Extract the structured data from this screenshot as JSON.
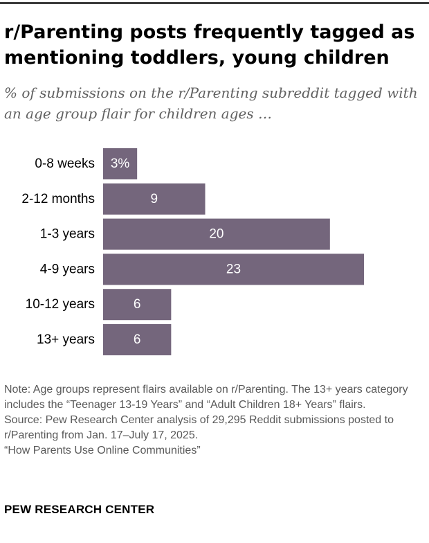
{
  "title": "r/Parenting posts frequently tagged as mentioning toddlers, young children",
  "subtitle": "% of submissions on the r/Parenting subreddit tagged with an age group flair for children ages …",
  "chart_data": {
    "type": "bar",
    "orientation": "horizontal",
    "categories": [
      "0-8 weeks",
      "2-12 months",
      "1-3 years",
      "4-9 years",
      "10-12 years",
      "13+ years"
    ],
    "values": [
      3,
      9,
      20,
      23,
      6,
      6
    ],
    "value_labels": [
      "3%",
      "9",
      "20",
      "23",
      "6",
      "6"
    ],
    "bar_color": "#74667c",
    "label_color": "#ffffff",
    "xlim": [
      0,
      23
    ]
  },
  "note": "Note: Age groups represent flairs available on r/Parenting. The 13+ years category includes the “Teenager 13-19 Years” and “Adult Children 18+ Years” flairs.",
  "source": "Source: Pew Research Center analysis of 29,295 Reddit submissions posted to r/Parenting from Jan. 17–July 17, 2025.",
  "report": "“How Parents Use Online Communities”",
  "footer": "PEW RESEARCH CENTER"
}
